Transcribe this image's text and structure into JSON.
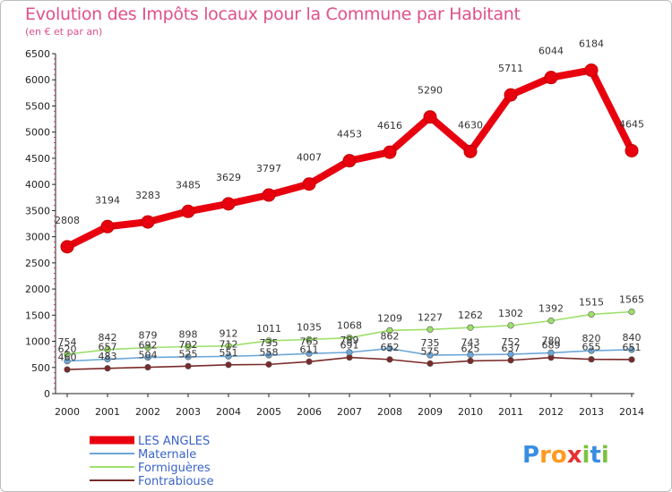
{
  "chart_data": {
    "type": "line",
    "title": "Evolution des Impôts locaux pour la Commune par Habitant",
    "subtitle": "(en € et par an)",
    "x": [
      "2000",
      "2001",
      "2002",
      "2003",
      "2004",
      "2005",
      "2006",
      "2007",
      "2008",
      "2009",
      "2010",
      "2011",
      "2012",
      "2013",
      "2014"
    ],
    "ylim": [
      0,
      6500
    ],
    "yticks": [
      0,
      500,
      1000,
      1500,
      2000,
      2500,
      3000,
      3500,
      4000,
      4500,
      5000,
      5500,
      6000,
      6500
    ],
    "series": [
      {
        "name": "LES ANGLES",
        "color": "#e8000f",
        "values": [
          2808,
          3194,
          3283,
          3485,
          3629,
          3797,
          4007,
          4453,
          4616,
          5290,
          4630,
          5711,
          6044,
          6184,
          4645
        ],
        "labels": [
          "2808",
          "3194",
          "3283",
          "3485",
          "3629",
          "3797",
          "4007",
          "4453",
          "4616",
          "5290",
          "4630",
          "5711",
          "6044",
          "6184",
          "4645"
        ]
      },
      {
        "name": "Maternale",
        "color": "#6da7d8",
        "values": [
          620,
          657,
          692,
          702,
          712,
          735,
          765,
          789,
          862,
          735,
          743,
          752,
          780,
          820,
          840
        ],
        "labels": [
          "620",
          "657",
          "692",
          "702",
          "712",
          "735",
          "765",
          "789",
          "862",
          "735",
          "743",
          "752",
          "780",
          "820",
          "840"
        ]
      },
      {
        "name": "Formiguères",
        "color": "#9ee06a",
        "values": [
          754,
          842,
          879,
          898,
          912,
          1011,
          1035,
          1068,
          1209,
          1227,
          1262,
          1302,
          1392,
          1515,
          1565
        ],
        "labels": [
          "754",
          "842",
          "879",
          "898",
          "912",
          "1011",
          "1035",
          "1068",
          "1209",
          "1227",
          "1262",
          "1302",
          "1392",
          "1515",
          "1565"
        ]
      },
      {
        "name": "Fontrabiouse",
        "color": "#7a2a2a",
        "values": [
          460,
          483,
          504,
          525,
          551,
          558,
          611,
          691,
          652,
          575,
          625,
          637,
          689,
          655,
          651
        ],
        "labels": [
          "460",
          "483",
          "504",
          "525",
          "551",
          "558",
          "611",
          "691",
          "652",
          "575",
          "625",
          "637",
          "689",
          "655",
          "651"
        ]
      }
    ],
    "grid": false,
    "legend_position": "bottom-left"
  },
  "logo": {
    "text": "Proxiti"
  }
}
